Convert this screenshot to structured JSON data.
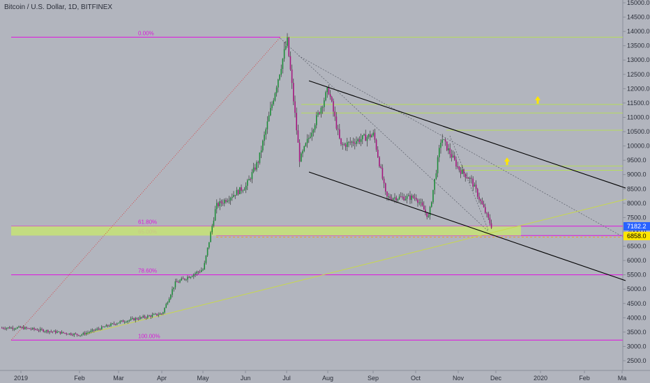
{
  "header": {
    "title": "Bitcoin / U.S. Dollar, 1D, BITFINEX"
  },
  "colors": {
    "background": "#b2b5be",
    "up": "#1e8c3a",
    "down": "#a3177e",
    "fib": "#e012e0",
    "zone": "#c6e377",
    "green_line": "#b6dd5a",
    "channel": "#000000",
    "arrow": "#ffe600",
    "price_blue": "#2962ff",
    "price_yellow": "#ffe600"
  },
  "chart_data": {
    "type": "candlestick",
    "title": "Bitcoin / U.S. Dollar, 1D, BITFINEX",
    "ylim": [
      2000,
      15500
    ],
    "y_ticks": [
      "2500.0",
      "3000.0",
      "3500.0",
      "4000.0",
      "4500.0",
      "5000.0",
      "5500.0",
      "6000.0",
      "6500.0",
      "7000.0",
      "7500.0",
      "8000.0",
      "8500.0",
      "9000.0",
      "9500.0",
      "10000.0",
      "10500.0",
      "11000.0",
      "11500.0",
      "12000.0",
      "12500.0",
      "13000.0",
      "13500.0",
      "14000.0",
      "14500.0",
      "15000.0"
    ],
    "x_ticks": [
      "2019",
      "Feb",
      "Mar",
      "Apr",
      "May",
      "Jun",
      "Jul",
      "Aug",
      "Sep",
      "Oct",
      "Nov",
      "Dec",
      "2020",
      "Feb",
      "Ma"
    ],
    "price_path": [
      {
        "x": "2019",
        "y": 3650
      },
      {
        "x": "Feb",
        "y": 3400
      },
      {
        "x": "Mar",
        "y": 3850
      },
      {
        "x": "Apr",
        "y": 4150
      },
      {
        "x": "Apr",
        "y": 5200
      },
      {
        "x": "May",
        "y": 5700
      },
      {
        "x": "May",
        "y": 7900
      },
      {
        "x": "Jun",
        "y": 8600
      },
      {
        "x": "Jun",
        "y": 9500
      },
      {
        "x": "Jul",
        "y": 13700
      },
      {
        "x": "Jul",
        "y": 9500
      },
      {
        "x": "Aug",
        "y": 12000
      },
      {
        "x": "Aug",
        "y": 10000
      },
      {
        "x": "Sep",
        "y": 10400
      },
      {
        "x": "Sep",
        "y": 8200
      },
      {
        "x": "Oct",
        "y": 8200
      },
      {
        "x": "Oct",
        "y": 7500
      },
      {
        "x": "Oct",
        "y": 10300
      },
      {
        "x": "Nov",
        "y": 9200
      },
      {
        "x": "Nov",
        "y": 8800
      },
      {
        "x": "Dec",
        "y": 6800
      },
      {
        "x": "Dec",
        "y": 7182
      }
    ],
    "fib_levels": [
      {
        "label": "0.00%",
        "price": 13800
      },
      {
        "label": "61.80%",
        "price": 7200
      },
      {
        "label": "65.00%",
        "price": 6870
      },
      {
        "label": "78.60%",
        "price": 5500
      },
      {
        "label": "100.00%",
        "price": 3220
      }
    ],
    "zone": {
      "low": 6870,
      "high": 7200
    },
    "green_levels": [
      13800,
      11450,
      11150,
      10550,
      9300,
      9150
    ],
    "last_price": "7182.2",
    "marked_price": "6858.0"
  }
}
